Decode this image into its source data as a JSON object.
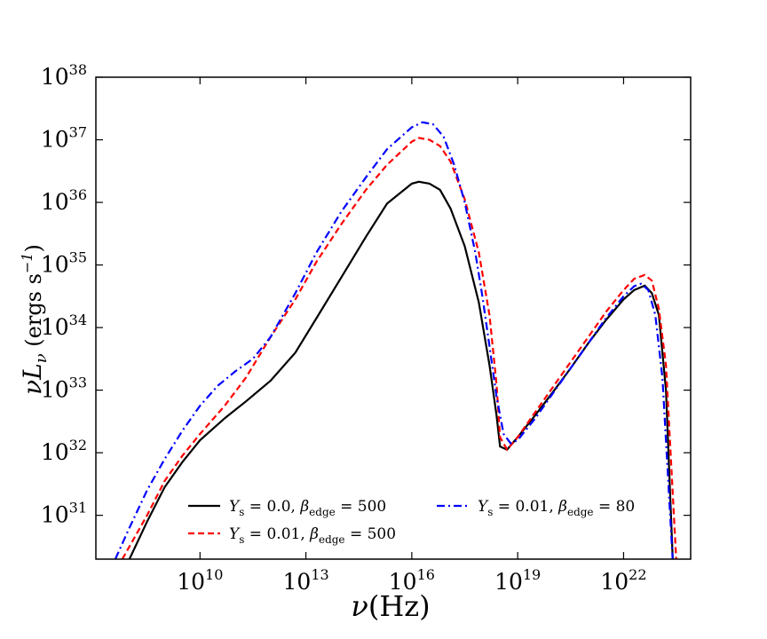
{
  "chart_data": {
    "type": "line",
    "title": "",
    "xlabel": "ν(Hz)",
    "ylabel": "νL_ν (ergs s^-1)",
    "xscale": "log",
    "yscale": "log",
    "xlim_log10": [
      7.05,
      23.9
    ],
    "ylim_log10": [
      30.3,
      38.0
    ],
    "x_ticks": [
      {
        "base": "10",
        "exp": "10",
        "log10": 10
      },
      {
        "base": "10",
        "exp": "13",
        "log10": 13
      },
      {
        "base": "10",
        "exp": "16",
        "log10": 16
      },
      {
        "base": "10",
        "exp": "19",
        "log10": 19
      },
      {
        "base": "10",
        "exp": "22",
        "log10": 22
      }
    ],
    "y_ticks": [
      {
        "base": "10",
        "exp": "31",
        "log10": 31
      },
      {
        "base": "10",
        "exp": "32",
        "log10": 32
      },
      {
        "base": "10",
        "exp": "33",
        "log10": 33
      },
      {
        "base": "10",
        "exp": "34",
        "log10": 34
      },
      {
        "base": "10",
        "exp": "35",
        "log10": 35
      },
      {
        "base": "10",
        "exp": "36",
        "log10": 36
      },
      {
        "base": "10",
        "exp": "37",
        "log10": 37
      },
      {
        "base": "10",
        "exp": "38",
        "log10": 38
      }
    ],
    "legend_location": "lower-center",
    "series": [
      {
        "name": "Υs = 0.0, βedge = 500",
        "legend": {
          "upsilon": "0.0",
          "beta": "500"
        },
        "color": "#000000",
        "dash": "solid",
        "x_log10": [
          8.0,
          8.5,
          9.0,
          9.5,
          10.0,
          10.7,
          11.3,
          12.0,
          12.7,
          13.3,
          14.0,
          14.7,
          15.3,
          16.0,
          16.2,
          16.5,
          16.8,
          17.1,
          17.5,
          17.9,
          18.2,
          18.4,
          18.5,
          18.7,
          19.0,
          19.5,
          20.0,
          20.5,
          21.0,
          21.5,
          22.0,
          22.3,
          22.6,
          22.8,
          23.0,
          23.2,
          23.4
        ],
        "y_log10": [
          30.3,
          30.9,
          31.45,
          31.85,
          32.2,
          32.55,
          32.82,
          33.15,
          33.6,
          34.15,
          34.8,
          35.45,
          35.98,
          36.3,
          36.33,
          36.3,
          36.2,
          35.9,
          35.3,
          34.4,
          33.4,
          32.6,
          32.1,
          32.05,
          32.25,
          32.6,
          32.97,
          33.35,
          33.75,
          34.12,
          34.45,
          34.6,
          34.67,
          34.55,
          34.2,
          33.0,
          30.2
        ]
      },
      {
        "name": "Υs = 0.01, βedge = 500",
        "legend": {
          "upsilon": "0.01",
          "beta": "500"
        },
        "color": "#ff0000",
        "dash": "dashed",
        "x_log10": [
          7.8,
          8.5,
          9.0,
          9.5,
          10.0,
          10.7,
          11.3,
          12.0,
          12.7,
          13.3,
          14.0,
          14.7,
          15.3,
          16.0,
          16.2,
          16.5,
          16.8,
          17.1,
          17.5,
          17.9,
          18.2,
          18.4,
          18.5,
          18.7,
          19.0,
          19.5,
          20.0,
          20.5,
          21.0,
          21.5,
          22.0,
          22.3,
          22.6,
          22.8,
          23.0,
          23.2,
          23.5
        ],
        "y_log10": [
          30.3,
          31.0,
          31.55,
          31.95,
          32.3,
          32.75,
          33.2,
          33.85,
          34.45,
          35.05,
          35.65,
          36.2,
          36.6,
          36.97,
          37.03,
          37.0,
          36.9,
          36.65,
          36.05,
          35.2,
          34.2,
          33.1,
          32.25,
          32.05,
          32.25,
          32.65,
          33.05,
          33.45,
          33.85,
          34.25,
          34.6,
          34.78,
          34.84,
          34.75,
          34.3,
          33.4,
          30.2
        ]
      },
      {
        "name": "Υs = 0.01, βedge = 80",
        "legend": {
          "upsilon": "0.01",
          "beta": "80"
        },
        "color": "#0000ff",
        "dash": "dashdot",
        "x_log10": [
          7.6,
          8.0,
          8.5,
          9.0,
          9.5,
          10.0,
          10.5,
          11.0,
          11.5,
          12.0,
          12.7,
          13.3,
          14.0,
          14.7,
          15.3,
          16.0,
          16.3,
          16.6,
          16.9,
          17.2,
          17.5,
          17.8,
          18.0,
          18.2,
          18.4,
          18.6,
          18.8,
          19.0,
          19.5,
          20.0,
          20.5,
          21.0,
          21.5,
          22.0,
          22.3,
          22.5,
          22.7,
          22.9,
          23.1,
          23.4
        ],
        "y_log10": [
          30.3,
          30.8,
          31.4,
          31.9,
          32.35,
          32.75,
          33.07,
          33.3,
          33.5,
          33.85,
          34.55,
          35.2,
          35.85,
          36.4,
          36.85,
          37.2,
          37.28,
          37.25,
          37.05,
          36.6,
          36.0,
          35.2,
          34.5,
          33.7,
          32.9,
          32.3,
          32.15,
          32.2,
          32.55,
          32.95,
          33.35,
          33.75,
          34.15,
          34.5,
          34.66,
          34.7,
          34.6,
          34.2,
          33.2,
          30.2
        ]
      }
    ]
  }
}
